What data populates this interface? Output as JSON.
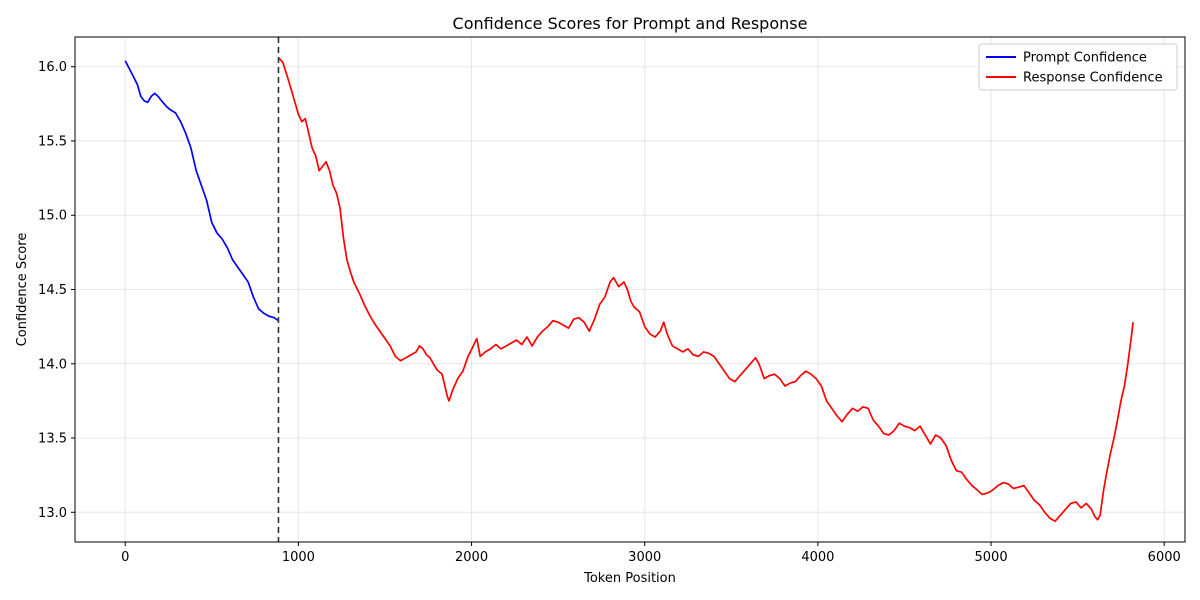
{
  "chart_data": {
    "type": "line",
    "title": "Confidence Scores for Prompt and Response",
    "xlabel": "Token Position",
    "ylabel": "Confidence Score",
    "xlim": [
      -290,
      6120
    ],
    "ylim": [
      12.8,
      16.2
    ],
    "xticks": [
      0,
      1000,
      2000,
      3000,
      4000,
      5000,
      6000
    ],
    "yticks": [
      13.0,
      13.5,
      14.0,
      14.5,
      15.0,
      15.5,
      16.0
    ],
    "grid": true,
    "legend_position": "top-right",
    "separator_x": 885,
    "series": [
      {
        "name": "Prompt Confidence",
        "color": "#0000ff",
        "points": [
          [
            0,
            16.04
          ],
          [
            40,
            15.95
          ],
          [
            70,
            15.88
          ],
          [
            90,
            15.8
          ],
          [
            110,
            15.77
          ],
          [
            130,
            15.76
          ],
          [
            150,
            15.8
          ],
          [
            170,
            15.82
          ],
          [
            190,
            15.8
          ],
          [
            210,
            15.77
          ],
          [
            240,
            15.73
          ],
          [
            260,
            15.71
          ],
          [
            290,
            15.69
          ],
          [
            320,
            15.63
          ],
          [
            350,
            15.55
          ],
          [
            380,
            15.45
          ],
          [
            410,
            15.3
          ],
          [
            440,
            15.2
          ],
          [
            470,
            15.1
          ],
          [
            500,
            14.95
          ],
          [
            530,
            14.88
          ],
          [
            560,
            14.84
          ],
          [
            590,
            14.78
          ],
          [
            620,
            14.7
          ],
          [
            650,
            14.65
          ],
          [
            680,
            14.6
          ],
          [
            710,
            14.55
          ],
          [
            740,
            14.45
          ],
          [
            770,
            14.37
          ],
          [
            800,
            14.34
          ],
          [
            830,
            14.32
          ],
          [
            860,
            14.31
          ],
          [
            885,
            14.29
          ]
        ]
      },
      {
        "name": "Response Confidence",
        "color": "#ff0000",
        "points": [
          [
            885,
            16.06
          ],
          [
            910,
            16.03
          ],
          [
            940,
            15.92
          ],
          [
            970,
            15.8
          ],
          [
            1000,
            15.68
          ],
          [
            1020,
            15.63
          ],
          [
            1040,
            15.65
          ],
          [
            1060,
            15.55
          ],
          [
            1080,
            15.45
          ],
          [
            1100,
            15.4
          ],
          [
            1120,
            15.3
          ],
          [
            1140,
            15.33
          ],
          [
            1160,
            15.36
          ],
          [
            1180,
            15.3
          ],
          [
            1200,
            15.2
          ],
          [
            1220,
            15.15
          ],
          [
            1240,
            15.05
          ],
          [
            1260,
            14.85
          ],
          [
            1280,
            14.7
          ],
          [
            1300,
            14.62
          ],
          [
            1320,
            14.55
          ],
          [
            1350,
            14.48
          ],
          [
            1380,
            14.4
          ],
          [
            1410,
            14.33
          ],
          [
            1440,
            14.27
          ],
          [
            1470,
            14.22
          ],
          [
            1500,
            14.17
          ],
          [
            1530,
            14.12
          ],
          [
            1560,
            14.05
          ],
          [
            1590,
            14.02
          ],
          [
            1620,
            14.04
          ],
          [
            1650,
            14.06
          ],
          [
            1680,
            14.08
          ],
          [
            1700,
            14.12
          ],
          [
            1720,
            14.1
          ],
          [
            1740,
            14.06
          ],
          [
            1760,
            14.04
          ],
          [
            1780,
            14.0
          ],
          [
            1800,
            13.96
          ],
          [
            1830,
            13.93
          ],
          [
            1860,
            13.78
          ],
          [
            1870,
            13.75
          ],
          [
            1890,
            13.82
          ],
          [
            1920,
            13.9
          ],
          [
            1950,
            13.95
          ],
          [
            1980,
            14.05
          ],
          [
            2010,
            14.12
          ],
          [
            2030,
            14.17
          ],
          [
            2050,
            14.05
          ],
          [
            2080,
            14.08
          ],
          [
            2110,
            14.1
          ],
          [
            2140,
            14.13
          ],
          [
            2170,
            14.1
          ],
          [
            2200,
            14.12
          ],
          [
            2230,
            14.14
          ],
          [
            2260,
            14.16
          ],
          [
            2290,
            14.13
          ],
          [
            2320,
            14.18
          ],
          [
            2350,
            14.12
          ],
          [
            2380,
            14.18
          ],
          [
            2410,
            14.22
          ],
          [
            2440,
            14.25
          ],
          [
            2470,
            14.29
          ],
          [
            2500,
            14.28
          ],
          [
            2530,
            14.26
          ],
          [
            2560,
            14.24
          ],
          [
            2590,
            14.3
          ],
          [
            2620,
            14.31
          ],
          [
            2650,
            14.28
          ],
          [
            2680,
            14.22
          ],
          [
            2710,
            14.3
          ],
          [
            2740,
            14.4
          ],
          [
            2770,
            14.45
          ],
          [
            2800,
            14.55
          ],
          [
            2820,
            14.58
          ],
          [
            2850,
            14.52
          ],
          [
            2880,
            14.55
          ],
          [
            2900,
            14.5
          ],
          [
            2920,
            14.42
          ],
          [
            2940,
            14.38
          ],
          [
            2970,
            14.35
          ],
          [
            3000,
            14.25
          ],
          [
            3030,
            14.2
          ],
          [
            3060,
            14.18
          ],
          [
            3090,
            14.22
          ],
          [
            3110,
            14.28
          ],
          [
            3130,
            14.2
          ],
          [
            3160,
            14.12
          ],
          [
            3190,
            14.1
          ],
          [
            3220,
            14.08
          ],
          [
            3250,
            14.1
          ],
          [
            3280,
            14.06
          ],
          [
            3310,
            14.05
          ],
          [
            3340,
            14.08
          ],
          [
            3370,
            14.07
          ],
          [
            3400,
            14.05
          ],
          [
            3430,
            14.0
          ],
          [
            3460,
            13.95
          ],
          [
            3490,
            13.9
          ],
          [
            3520,
            13.88
          ],
          [
            3550,
            13.92
          ],
          [
            3580,
            13.96
          ],
          [
            3610,
            14.0
          ],
          [
            3640,
            14.04
          ],
          [
            3660,
            14.0
          ],
          [
            3690,
            13.9
          ],
          [
            3720,
            13.92
          ],
          [
            3750,
            13.93
          ],
          [
            3780,
            13.9
          ],
          [
            3810,
            13.85
          ],
          [
            3840,
            13.87
          ],
          [
            3870,
            13.88
          ],
          [
            3900,
            13.92
          ],
          [
            3930,
            13.95
          ],
          [
            3960,
            13.93
          ],
          [
            3990,
            13.9
          ],
          [
            4020,
            13.85
          ],
          [
            4050,
            13.75
          ],
          [
            4080,
            13.7
          ],
          [
            4110,
            13.65
          ],
          [
            4140,
            13.61
          ],
          [
            4170,
            13.66
          ],
          [
            4200,
            13.7
          ],
          [
            4230,
            13.68
          ],
          [
            4260,
            13.71
          ],
          [
            4290,
            13.7
          ],
          [
            4320,
            13.62
          ],
          [
            4350,
            13.58
          ],
          [
            4380,
            13.53
          ],
          [
            4410,
            13.52
          ],
          [
            4440,
            13.55
          ],
          [
            4470,
            13.6
          ],
          [
            4500,
            13.58
          ],
          [
            4530,
            13.57
          ],
          [
            4560,
            13.55
          ],
          [
            4590,
            13.58
          ],
          [
            4620,
            13.52
          ],
          [
            4650,
            13.46
          ],
          [
            4680,
            13.52
          ],
          [
            4710,
            13.5
          ],
          [
            4740,
            13.45
          ],
          [
            4770,
            13.35
          ],
          [
            4800,
            13.28
          ],
          [
            4830,
            13.27
          ],
          [
            4860,
            13.22
          ],
          [
            4890,
            13.18
          ],
          [
            4920,
            13.15
          ],
          [
            4950,
            13.12
          ],
          [
            4980,
            13.13
          ],
          [
            5010,
            13.15
          ],
          [
            5040,
            13.18
          ],
          [
            5070,
            13.2
          ],
          [
            5100,
            13.19
          ],
          [
            5130,
            13.16
          ],
          [
            5160,
            13.17
          ],
          [
            5190,
            13.18
          ],
          [
            5220,
            13.13
          ],
          [
            5250,
            13.08
          ],
          [
            5280,
            13.05
          ],
          [
            5310,
            13.0
          ],
          [
            5340,
            12.96
          ],
          [
            5370,
            12.94
          ],
          [
            5400,
            12.98
          ],
          [
            5430,
            13.02
          ],
          [
            5460,
            13.06
          ],
          [
            5490,
            13.07
          ],
          [
            5520,
            13.03
          ],
          [
            5550,
            13.06
          ],
          [
            5580,
            13.02
          ],
          [
            5600,
            12.97
          ],
          [
            5615,
            12.95
          ],
          [
            5630,
            12.98
          ],
          [
            5650,
            13.15
          ],
          [
            5670,
            13.28
          ],
          [
            5690,
            13.4
          ],
          [
            5710,
            13.5
          ],
          [
            5730,
            13.62
          ],
          [
            5750,
            13.75
          ],
          [
            5770,
            13.85
          ],
          [
            5790,
            14.0
          ],
          [
            5810,
            14.18
          ],
          [
            5820,
            14.28
          ]
        ]
      }
    ]
  }
}
